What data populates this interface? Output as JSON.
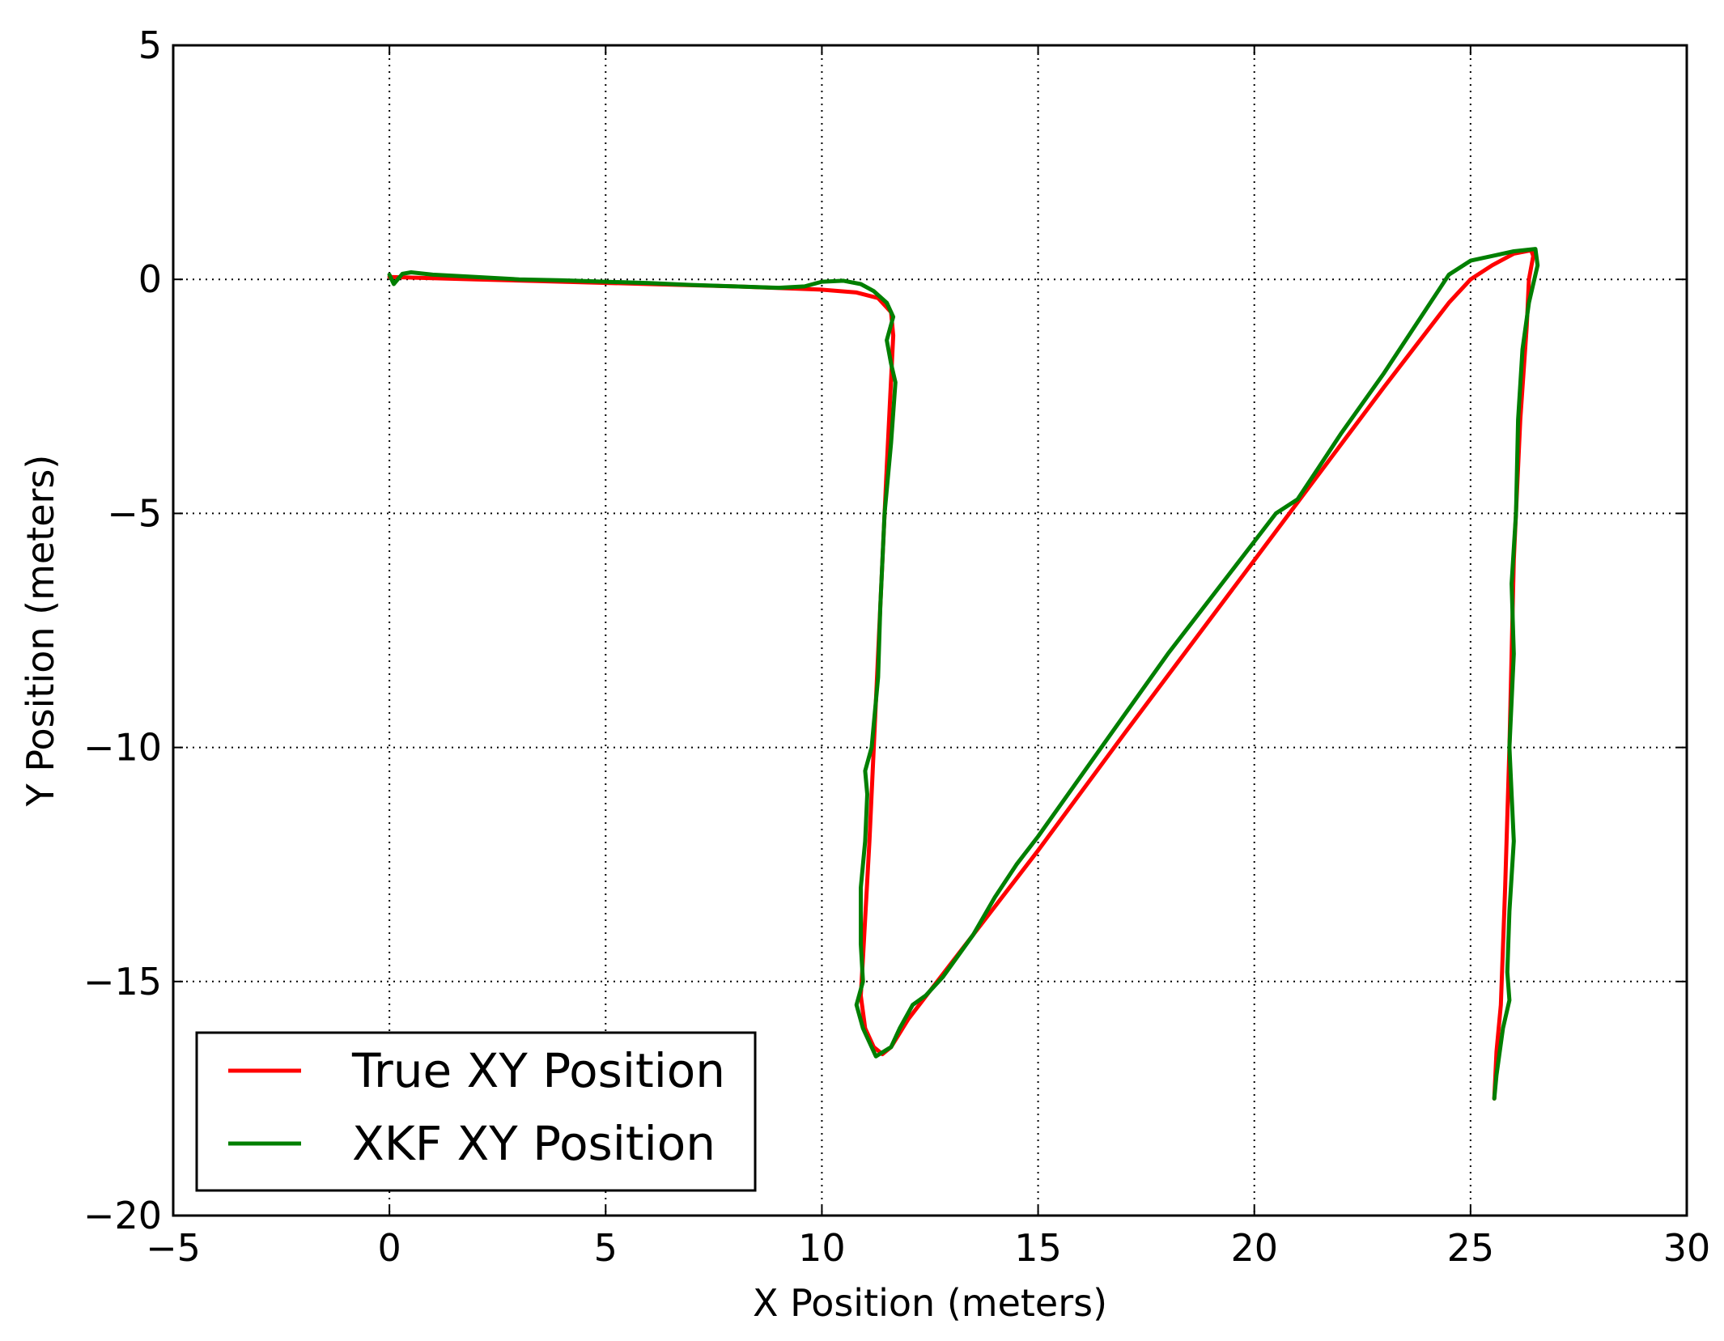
{
  "chart_data": {
    "type": "line",
    "title": "",
    "xlabel": "X Position (meters)",
    "ylabel": "Y Position (meters)",
    "xlim": [
      -5,
      30
    ],
    "ylim": [
      -20,
      5
    ],
    "xticks": [
      -5,
      0,
      5,
      10,
      15,
      20,
      25,
      30
    ],
    "yticks": [
      -20,
      -15,
      -10,
      -5,
      0,
      5
    ],
    "xtick_labels": [
      "−5",
      "0",
      "5",
      "10",
      "15",
      "20",
      "25",
      "30"
    ],
    "ytick_labels": [
      "−20",
      "−15",
      "−10",
      "−5",
      "0",
      "5"
    ],
    "grid": true,
    "grid_style": "dotted",
    "legend_position": "lower-left",
    "series": [
      {
        "name": "True XY Position",
        "color": "#ff0000",
        "points": [
          [
            0,
            0.05
          ],
          [
            2,
            0.0
          ],
          [
            4,
            -0.05
          ],
          [
            6,
            -0.1
          ],
          [
            8,
            -0.15
          ],
          [
            10,
            -0.22
          ],
          [
            10.8,
            -0.28
          ],
          [
            11.3,
            -0.4
          ],
          [
            11.6,
            -0.7
          ],
          [
            11.65,
            -1.2
          ],
          [
            11.5,
            -4.0
          ],
          [
            11.3,
            -8.0
          ],
          [
            11.1,
            -12.0
          ],
          [
            10.95,
            -14.5
          ],
          [
            10.9,
            -15.3
          ],
          [
            11.0,
            -16.0
          ],
          [
            11.2,
            -16.4
          ],
          [
            11.4,
            -16.55
          ],
          [
            11.6,
            -16.4
          ],
          [
            12.0,
            -15.8
          ],
          [
            13,
            -14.6
          ],
          [
            15,
            -12.2
          ],
          [
            17,
            -9.7
          ],
          [
            20,
            -6.0
          ],
          [
            23,
            -2.3
          ],
          [
            24.5,
            -0.5
          ],
          [
            25.0,
            0.0
          ],
          [
            25.5,
            0.3
          ],
          [
            26.0,
            0.55
          ],
          [
            26.4,
            0.62
          ],
          [
            26.45,
            0.5
          ],
          [
            26.35,
            0.0
          ],
          [
            26.3,
            -1.0
          ],
          [
            26.15,
            -3.0
          ],
          [
            26.0,
            -6.0
          ],
          [
            25.9,
            -10.0
          ],
          [
            25.8,
            -13.0
          ],
          [
            25.7,
            -15.5
          ],
          [
            25.6,
            -16.5
          ],
          [
            25.55,
            -17.5
          ]
        ]
      },
      {
        "name": "XKF XY Position",
        "color": "#007f00",
        "points": [
          [
            0,
            0.1
          ],
          [
            0.1,
            -0.1
          ],
          [
            0.3,
            0.12
          ],
          [
            0.5,
            0.15
          ],
          [
            1,
            0.1
          ],
          [
            2,
            0.05
          ],
          [
            3,
            0.0
          ],
          [
            4,
            -0.02
          ],
          [
            5,
            -0.05
          ],
          [
            6,
            -0.08
          ],
          [
            7,
            -0.12
          ],
          [
            8,
            -0.15
          ],
          [
            9,
            -0.18
          ],
          [
            9.6,
            -0.15
          ],
          [
            10,
            -0.05
          ],
          [
            10.5,
            -0.03
          ],
          [
            10.9,
            -0.1
          ],
          [
            11.2,
            -0.25
          ],
          [
            11.5,
            -0.5
          ],
          [
            11.65,
            -0.8
          ],
          [
            11.5,
            -1.3
          ],
          [
            11.6,
            -1.8
          ],
          [
            11.7,
            -2.2
          ],
          [
            11.6,
            -3.5
          ],
          [
            11.45,
            -5.0
          ],
          [
            11.35,
            -7.0
          ],
          [
            11.3,
            -8.5
          ],
          [
            11.15,
            -10.0
          ],
          [
            11.0,
            -10.5
          ],
          [
            11.05,
            -11.0
          ],
          [
            11.0,
            -12.0
          ],
          [
            10.9,
            -13.0
          ],
          [
            10.9,
            -14.2
          ],
          [
            10.95,
            -15.0
          ],
          [
            10.8,
            -15.5
          ],
          [
            10.95,
            -16.0
          ],
          [
            11.25,
            -16.6
          ],
          [
            11.6,
            -16.4
          ],
          [
            11.8,
            -16.0
          ],
          [
            12.1,
            -15.5
          ],
          [
            12.4,
            -15.3
          ],
          [
            12.8,
            -14.9
          ],
          [
            13.5,
            -14.0
          ],
          [
            14.0,
            -13.2
          ],
          [
            14.5,
            -12.5
          ],
          [
            15.0,
            -11.9
          ],
          [
            16,
            -10.6
          ],
          [
            17,
            -9.3
          ],
          [
            18,
            -8.0
          ],
          [
            19,
            -6.8
          ],
          [
            20,
            -5.6
          ],
          [
            20.5,
            -5.0
          ],
          [
            21.0,
            -4.7
          ],
          [
            21.5,
            -4.0
          ],
          [
            22,
            -3.3
          ],
          [
            23,
            -2.0
          ],
          [
            24,
            -0.6
          ],
          [
            24.5,
            0.1
          ],
          [
            25,
            0.4
          ],
          [
            25.5,
            0.5
          ],
          [
            26.0,
            0.6
          ],
          [
            26.5,
            0.65
          ],
          [
            26.55,
            0.3
          ],
          [
            26.35,
            -0.5
          ],
          [
            26.2,
            -1.5
          ],
          [
            26.1,
            -3.0
          ],
          [
            26.05,
            -5.0
          ],
          [
            25.95,
            -6.5
          ],
          [
            26.0,
            -8.0
          ],
          [
            25.9,
            -10.0
          ],
          [
            26.0,
            -12.0
          ],
          [
            25.9,
            -13.5
          ],
          [
            25.85,
            -14.8
          ],
          [
            25.9,
            -15.4
          ],
          [
            25.75,
            -16.0
          ],
          [
            25.6,
            -17.0
          ],
          [
            25.55,
            -17.5
          ]
        ]
      }
    ]
  }
}
